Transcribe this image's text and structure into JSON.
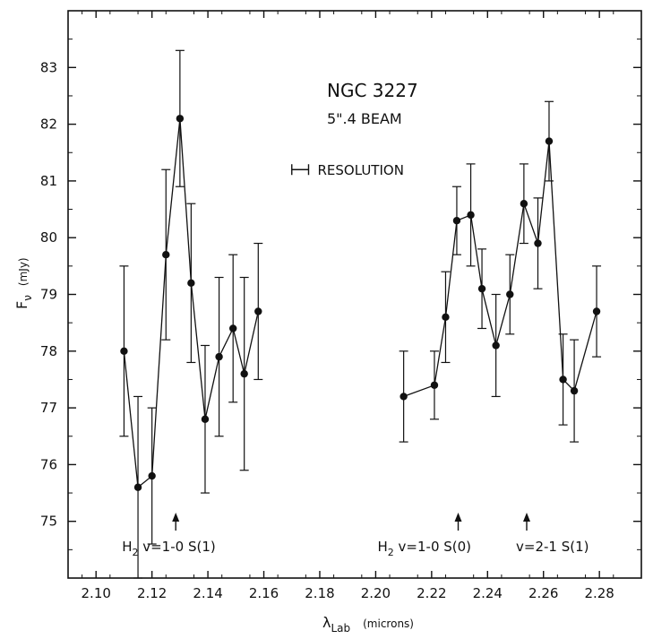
{
  "chart_data": {
    "type": "scatter",
    "title": "NGC 3227",
    "subtitle": "5\".4 BEAM",
    "xlabel": "λLab (microns)",
    "xlabel_main": "λ",
    "xlabel_sub": "Lab",
    "xlabel_units": "(microns)",
    "ylabel": "Fν (mJy)",
    "ylabel_main": "F",
    "ylabel_sub": "ν",
    "ylabel_units": "(mJy)",
    "xlim": [
      2.09,
      2.295
    ],
    "ylim": [
      74.0,
      84.0
    ],
    "xticks": [
      "2.10",
      "2.12",
      "2.14",
      "2.16",
      "2.18",
      "2.20",
      "2.22",
      "2.24",
      "2.26",
      "2.28"
    ],
    "yticks": [
      "75",
      "76",
      "77",
      "78",
      "79",
      "80",
      "81",
      "82",
      "83"
    ],
    "grid": false,
    "series": [
      {
        "points": [
          {
            "x": 2.11,
            "y": 78.0,
            "err": 1.5
          },
          {
            "x": 2.115,
            "y": 75.6,
            "err": 1.6
          },
          {
            "x": 2.12,
            "y": 75.8,
            "err": 1.2
          },
          {
            "x": 2.125,
            "y": 79.7,
            "err": 1.5
          },
          {
            "x": 2.13,
            "y": 82.1,
            "err": 1.2
          },
          {
            "x": 2.134,
            "y": 79.2,
            "err": 1.4
          },
          {
            "x": 2.139,
            "y": 76.8,
            "err": 1.3
          },
          {
            "x": 2.144,
            "y": 77.9,
            "err": 1.4
          },
          {
            "x": 2.149,
            "y": 78.4,
            "err": 1.3
          },
          {
            "x": 2.153,
            "y": 77.6,
            "err": 1.7
          },
          {
            "x": 2.158,
            "y": 78.7,
            "err": 1.2
          }
        ]
      },
      {
        "points": [
          {
            "x": 2.21,
            "y": 77.2,
            "err": 0.8
          },
          {
            "x": 2.221,
            "y": 77.4,
            "err": 0.6
          },
          {
            "x": 2.225,
            "y": 78.6,
            "err": 0.8
          },
          {
            "x": 2.229,
            "y": 80.3,
            "err": 0.6
          },
          {
            "x": 2.234,
            "y": 80.4,
            "err": 0.9
          },
          {
            "x": 2.238,
            "y": 79.1,
            "err": 0.7
          },
          {
            "x": 2.243,
            "y": 78.1,
            "err": 0.9
          },
          {
            "x": 2.248,
            "y": 79.0,
            "err": 0.7
          },
          {
            "x": 2.253,
            "y": 80.6,
            "err": 0.7
          },
          {
            "x": 2.258,
            "y": 79.9,
            "err": 0.8
          },
          {
            "x": 2.262,
            "y": 81.7,
            "err": 0.7
          },
          {
            "x": 2.267,
            "y": 77.5,
            "err": 0.8
          },
          {
            "x": 2.271,
            "y": 77.3,
            "err": 0.9
          },
          {
            "x": 2.279,
            "y": 78.7,
            "err": 0.8
          }
        ]
      }
    ],
    "annotations": {
      "resolution_label": "RESOLUTION",
      "resolution_width": 0.006,
      "resolution_x": 2.173,
      "resolution_y": 81.2,
      "lines": [
        {
          "x": 2.1285,
          "label_main": "H",
          "label_sub": "2",
          "label_rest": " v=1-0 S(1)"
        },
        {
          "x": 2.2295,
          "label_main": "H",
          "label_sub": "2",
          "label_rest": " v=1-0 S(0)"
        },
        {
          "x": 2.254,
          "label_main": "",
          "label_sub": "",
          "label_rest": "v=2-1 S(1)"
        }
      ]
    }
  }
}
